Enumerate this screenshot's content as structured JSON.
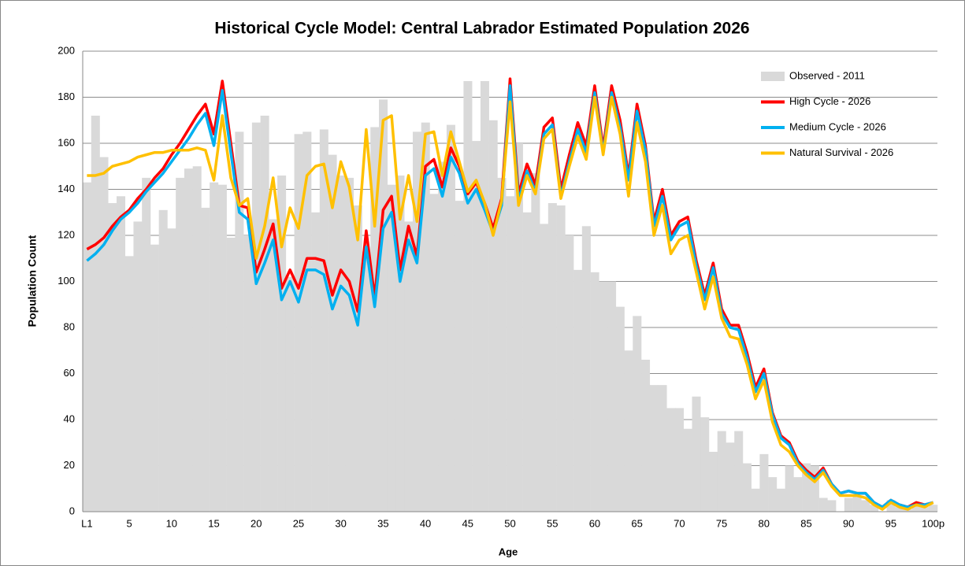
{
  "chart_data": {
    "type": "combo",
    "title": "Historical Cycle Model: Central Labrador Estimated Population  2026",
    "x_label": "Age",
    "y_label": "Population Count",
    "categories": [
      "L1",
      null,
      null,
      null,
      null,
      "5",
      null,
      null,
      null,
      null,
      "10",
      null,
      null,
      null,
      null,
      "15",
      null,
      null,
      null,
      null,
      "20",
      null,
      null,
      null,
      null,
      "25",
      null,
      null,
      null,
      null,
      "30",
      null,
      null,
      null,
      null,
      "35",
      null,
      null,
      null,
      null,
      "40",
      null,
      null,
      null,
      null,
      "45",
      null,
      null,
      null,
      null,
      "50",
      null,
      null,
      null,
      null,
      "55",
      null,
      null,
      null,
      null,
      "60",
      null,
      null,
      null,
      null,
      "65",
      null,
      null,
      null,
      null,
      "70",
      null,
      null,
      null,
      null,
      "75",
      null,
      null,
      null,
      null,
      "80",
      null,
      null,
      null,
      null,
      "85",
      null,
      null,
      null,
      null,
      "90",
      null,
      null,
      null,
      null,
      "95",
      null,
      null,
      null,
      null,
      "100p"
    ],
    "ylim": [
      0,
      200
    ],
    "yticks": [
      0,
      20,
      40,
      60,
      80,
      100,
      120,
      140,
      160,
      180,
      200
    ],
    "grid": true,
    "legend": "top-right",
    "series": [
      {
        "name": "Observed - 2011",
        "type": "bar",
        "color": "#d9d9d9",
        "values": [
          143,
          172,
          154,
          134,
          137,
          111,
          126,
          145,
          116,
          131,
          123,
          145,
          149,
          150,
          132,
          143,
          142,
          119,
          165,
          120,
          169,
          172,
          127,
          146,
          102,
          164,
          165,
          130,
          166,
          155,
          146,
          145,
          133,
          113,
          167,
          179,
          142,
          146,
          126,
          165,
          169,
          138,
          152,
          168,
          135,
          187,
          161,
          187,
          170,
          145,
          137,
          160,
          130,
          147,
          125,
          134,
          133,
          120,
          105,
          124,
          104,
          100,
          100,
          89,
          70,
          85,
          66,
          55,
          55,
          45,
          45,
          36,
          50,
          41,
          26,
          35,
          30,
          35,
          21,
          10,
          25,
          15,
          10,
          20,
          15,
          21,
          20,
          6,
          5,
          0,
          6,
          7,
          5,
          3,
          0,
          5,
          2,
          1,
          3,
          2,
          3
        ]
      },
      {
        "name": "High Cycle - 2026",
        "type": "line",
        "color": "#ff0000",
        "values": [
          114,
          116,
          119,
          124,
          128,
          131,
          136,
          140,
          145,
          149,
          155,
          160,
          166,
          172,
          177,
          164,
          187,
          160,
          133,
          132,
          104,
          114,
          125,
          97,
          105,
          97,
          110,
          110,
          109,
          94,
          105,
          100,
          87,
          122,
          93,
          131,
          137,
          105,
          124,
          111,
          150,
          153,
          141,
          158,
          150,
          138,
          143,
          134,
          123,
          136,
          188,
          138,
          151,
          142,
          167,
          171,
          140,
          155,
          169,
          159,
          185,
          158,
          185,
          170,
          146,
          177,
          159,
          126,
          140,
          120,
          126,
          128,
          109,
          94,
          108,
          88,
          81,
          81,
          69,
          54,
          62,
          43,
          33,
          30,
          22,
          18,
          15,
          19,
          12,
          8,
          9,
          8,
          8,
          4,
          2,
          5,
          3,
          2,
          4,
          3,
          4
        ]
      },
      {
        "name": "Medium Cycle - 2026",
        "type": "line",
        "color": "#00b0f0",
        "values": [
          109,
          112,
          116,
          122,
          127,
          130,
          134,
          139,
          143,
          147,
          152,
          157,
          162,
          168,
          173,
          159,
          183,
          156,
          130,
          127,
          99,
          108,
          118,
          92,
          100,
          91,
          105,
          105,
          103,
          88,
          98,
          94,
          81,
          115,
          89,
          123,
          130,
          100,
          118,
          108,
          146,
          149,
          137,
          154,
          147,
          134,
          140,
          131,
          121,
          133,
          185,
          135,
          148,
          139,
          164,
          168,
          137,
          152,
          166,
          156,
          182,
          156,
          182,
          167,
          144,
          174,
          157,
          124,
          137,
          118,
          124,
          126,
          107,
          92,
          106,
          86,
          80,
          79,
          67,
          52,
          60,
          42,
          32,
          29,
          21,
          17,
          14,
          18,
          12,
          8,
          9,
          8,
          8,
          4,
          2,
          5,
          3,
          2,
          3,
          3,
          4
        ]
      },
      {
        "name": "Natural Survival - 2026",
        "type": "line",
        "color": "#ffc000",
        "values": [
          146,
          146,
          147,
          150,
          151,
          152,
          154,
          155,
          156,
          156,
          157,
          157,
          157,
          158,
          157,
          144,
          172,
          145,
          133,
          136,
          110,
          124,
          145,
          115,
          132,
          123,
          146,
          150,
          151,
          132,
          152,
          141,
          118,
          166,
          124,
          170,
          172,
          127,
          146,
          126,
          164,
          165,
          146,
          165,
          152,
          139,
          144,
          134,
          120,
          135,
          178,
          133,
          146,
          138,
          162,
          166,
          136,
          150,
          163,
          153,
          180,
          155,
          180,
          164,
          137,
          169,
          152,
          120,
          133,
          112,
          118,
          120,
          104,
          88,
          102,
          84,
          76,
          75,
          64,
          49,
          57,
          39,
          29,
          26,
          20,
          16,
          13,
          17,
          11,
          7,
          7,
          7,
          6,
          3,
          1,
          4,
          2,
          1,
          3,
          2,
          4
        ]
      }
    ]
  }
}
